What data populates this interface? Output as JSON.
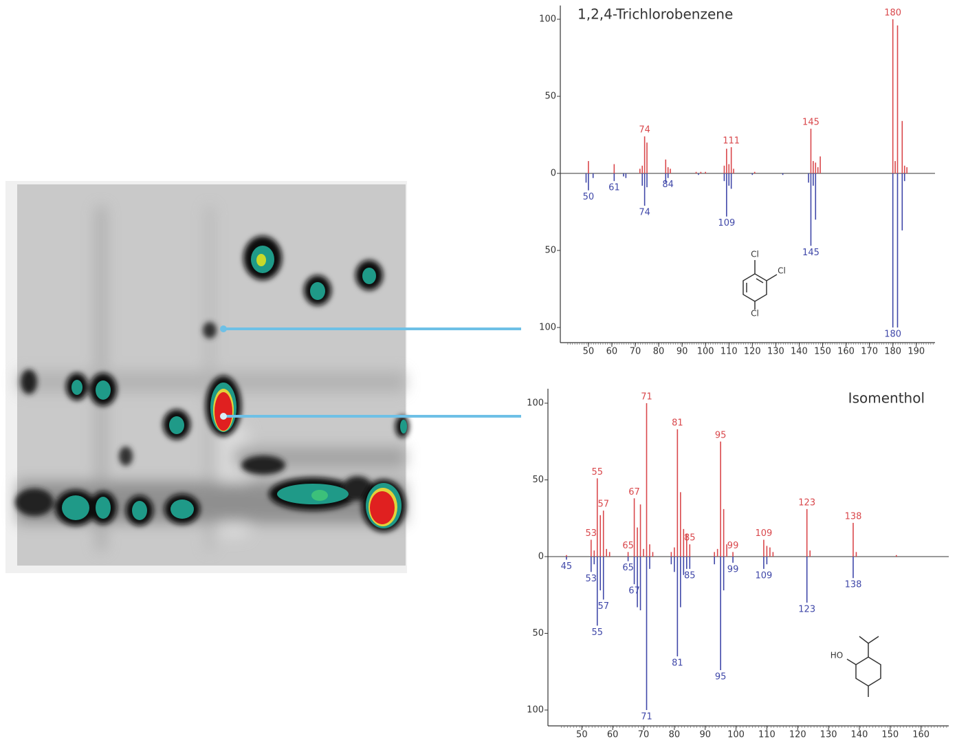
{
  "chart_data": [
    {
      "type": "mirror-spectrum",
      "title": "1,2,4-Trichlorobenzene",
      "xlim": [
        38,
        198
      ],
      "xticks": [
        50,
        60,
        70,
        80,
        90,
        100,
        110,
        120,
        130,
        140,
        150,
        160,
        170,
        180,
        190
      ],
      "ylim": [
        -100,
        100
      ],
      "yticks": [
        {
          "value": -100,
          "label": "100"
        },
        {
          "value": -50,
          "label": "50"
        },
        0,
        50,
        100
      ],
      "structure_labels": [
        "Cl",
        "Cl",
        "Cl"
      ],
      "series": [
        {
          "color": "#d9474b",
          "x": [
            50,
            61,
            72,
            73,
            74,
            75,
            83,
            84,
            85,
            96,
            98,
            100,
            108,
            109,
            110,
            111,
            112,
            121,
            145,
            146,
            147,
            148,
            149,
            180,
            181,
            182,
            184,
            185,
            186
          ],
          "values": [
            8,
            6,
            3,
            5,
            24,
            20,
            9,
            4,
            3,
            1,
            1,
            1,
            5,
            16,
            6,
            17,
            3,
            1,
            29,
            8,
            7,
            4,
            11,
            100,
            8,
            96,
            34,
            5,
            4
          ],
          "labels": [
            74,
            111,
            145,
            180
          ]
        },
        {
          "color": "#3f47a8",
          "x": [
            49,
            50,
            52,
            61,
            65,
            66,
            73,
            74,
            75,
            83,
            84,
            97,
            108,
            109,
            110,
            111,
            120,
            133,
            144,
            145,
            146,
            147,
            180,
            182,
            184,
            185
          ],
          "values": [
            -6,
            -11,
            -3,
            -5,
            -2,
            -3,
            -8,
            -21,
            -9,
            -6,
            -3,
            -1,
            -5,
            -28,
            -8,
            -10,
            -1,
            -1,
            -6,
            -47,
            -8,
            -30,
            -100,
            -100,
            -37,
            -5
          ],
          "labels": [
            50,
            61,
            74,
            84,
            109,
            145,
            180
          ]
        }
      ]
    },
    {
      "type": "mirror-spectrum",
      "title": "Isomenthol",
      "xlim": [
        39,
        169
      ],
      "xticks": [
        50,
        60,
        70,
        80,
        90,
        100,
        110,
        120,
        130,
        140,
        150,
        160
      ],
      "ylim": [
        -100,
        100
      ],
      "yticks": [
        {
          "value": -100,
          "label": "100"
        },
        {
          "value": -50,
          "label": "50"
        },
        0,
        50,
        100
      ],
      "structure_labels": [
        "HO"
      ],
      "series": [
        {
          "color": "#d9474b",
          "x": [
            45,
            53,
            54,
            55,
            56,
            57,
            58,
            59,
            65,
            67,
            68,
            69,
            70,
            71,
            72,
            73,
            79,
            80,
            81,
            82,
            83,
            84,
            85,
            93,
            94,
            95,
            96,
            97,
            99,
            109,
            110,
            111,
            112,
            123,
            124,
            138,
            139,
            152
          ],
          "values": [
            1,
            11,
            4,
            51,
            27,
            30,
            5,
            3,
            3,
            38,
            19,
            34,
            5,
            100,
            8,
            3,
            3,
            6,
            83,
            42,
            18,
            15,
            8,
            3,
            5,
            75,
            31,
            8,
            3,
            11,
            7,
            6,
            3,
            31,
            4,
            22,
            3,
            1
          ],
          "labels": [
            53,
            55,
            57,
            65,
            67,
            71,
            81,
            85,
            95,
            99,
            109,
            123,
            138
          ]
        },
        {
          "color": "#3f47a8",
          "x": [
            45,
            53,
            54,
            55,
            56,
            57,
            65,
            67,
            68,
            69,
            71,
            72,
            79,
            80,
            81,
            82,
            83,
            84,
            85,
            93,
            95,
            96,
            99,
            109,
            110,
            123,
            138
          ],
          "values": [
            -2,
            -10,
            -5,
            -45,
            -22,
            -28,
            -3,
            -18,
            -33,
            -35,
            -100,
            -8,
            -5,
            -10,
            -65,
            -33,
            -12,
            -8,
            -8,
            -5,
            -74,
            -22,
            -4,
            -8,
            -5,
            -30,
            -14
          ],
          "labels": [
            45,
            53,
            55,
            57,
            65,
            67,
            71,
            81,
            85,
            95,
            99,
            109,
            123,
            138
          ]
        }
      ]
    }
  ]
}
